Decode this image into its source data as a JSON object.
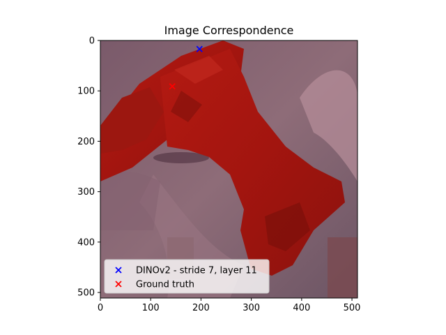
{
  "chart_data": {
    "type": "scatter",
    "title": "Image Correspondence",
    "xlabel": "",
    "ylabel": "",
    "xlim": [
      0,
      511
    ],
    "ylim": [
      511,
      0
    ],
    "x_ticks": [
      0,
      100,
      200,
      300,
      400,
      500
    ],
    "y_ticks": [
      0,
      100,
      200,
      300,
      400,
      500
    ],
    "background_image": "image of a red cordless power drill over a muted mauve background",
    "series": [
      {
        "name": "DINOv2 - stride 7, layer 11",
        "marker": "x",
        "color": "#0000ff",
        "points": [
          {
            "x": 197,
            "y": 17
          }
        ]
      },
      {
        "name": "Ground truth",
        "marker": "x",
        "color": "#ff0000",
        "points": [
          {
            "x": 143,
            "y": 91
          }
        ]
      }
    ],
    "legend_position": "lower-left"
  }
}
